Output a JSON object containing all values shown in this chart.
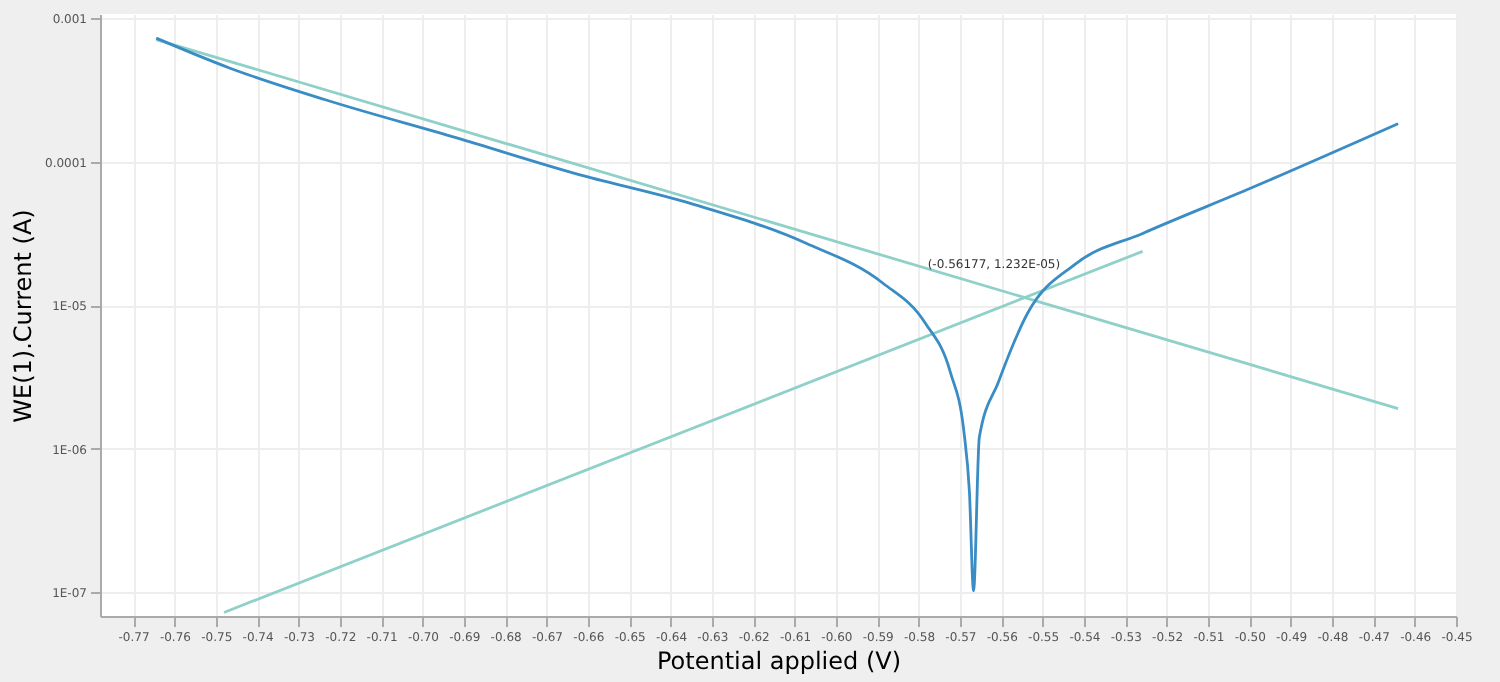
{
  "chart_data": {
    "type": "line",
    "xlabel": "Potential applied (V)",
    "ylabel": "WE(1).Current (A)",
    "xlim": [
      -0.778,
      -0.45
    ],
    "xticks": [
      -0.77,
      -0.76,
      -0.75,
      -0.74,
      -0.73,
      -0.72,
      -0.71,
      {
        "value": -0.7,
        "label": "-0.70"
      },
      -0.69,
      -0.68,
      -0.67,
      -0.66,
      -0.65,
      -0.64,
      -0.63,
      -0.62,
      -0.61,
      {
        "value": -0.6,
        "label": "-0.60"
      },
      -0.59,
      -0.58,
      -0.57,
      -0.56,
      -0.55,
      -0.54,
      -0.53,
      -0.52,
      -0.51,
      {
        "value": -0.5,
        "label": "-0.50"
      },
      -0.49,
      -0.48,
      -0.47,
      -0.46,
      -0.45
    ],
    "ylim": [
      6.8e-08,
      0.00107
    ],
    "yticks": [
      0.001,
      0.0001,
      {
        "value": 1e-05,
        "label": "1E-05"
      },
      {
        "value": 1e-06,
        "label": "1E-06"
      },
      {
        "value": 1e-07,
        "label": "1E-07"
      }
    ],
    "log": "y",
    "grid": true,
    "series": [
      {
        "color": "#8fd0c8",
        "x": [
          -0.7644,
          -0.464
        ],
        "values": [
          0.00071,
          1.9e-06
        ]
      },
      {
        "color": "#8fd0c8",
        "x": [
          -0.748,
          -0.5258
        ],
        "values": [
          7.2e-08,
          2.37e-05
        ]
      },
      {
        "color": "#3a8cc4",
        "x": [
          -0.7644,
          -0.7467,
          -0.7235,
          -0.6919,
          -0.663,
          -0.635,
          -0.6072,
          -0.5886,
          -0.5784,
          -0.5723,
          -0.569,
          -0.5677,
          -0.5667,
          -0.5653,
          -0.5607,
          -0.5537,
          -0.542,
          -0.5258,
          -0.4993,
          -0.464
        ],
        "values": [
          0.000726,
          0.00045,
          0.00027,
          0.000147,
          8.26e-05,
          5.1e-05,
          2.7e-05,
          1.42e-05,
          7.5e-06,
          3.4e-06,
          1.29e-06,
          5e-07,
          1.02e-07,
          1.2e-06,
          2.9e-06,
          8.7e-06,
          1.94e-05,
          3.16e-05,
          6.6e-05,
          0.000184
        ]
      }
    ],
    "annotations": [
      {
        "text": "(-0.56177, 1.232E-05)",
        "x": -0.56177,
        "y": 1.232e-05
      }
    ]
  }
}
